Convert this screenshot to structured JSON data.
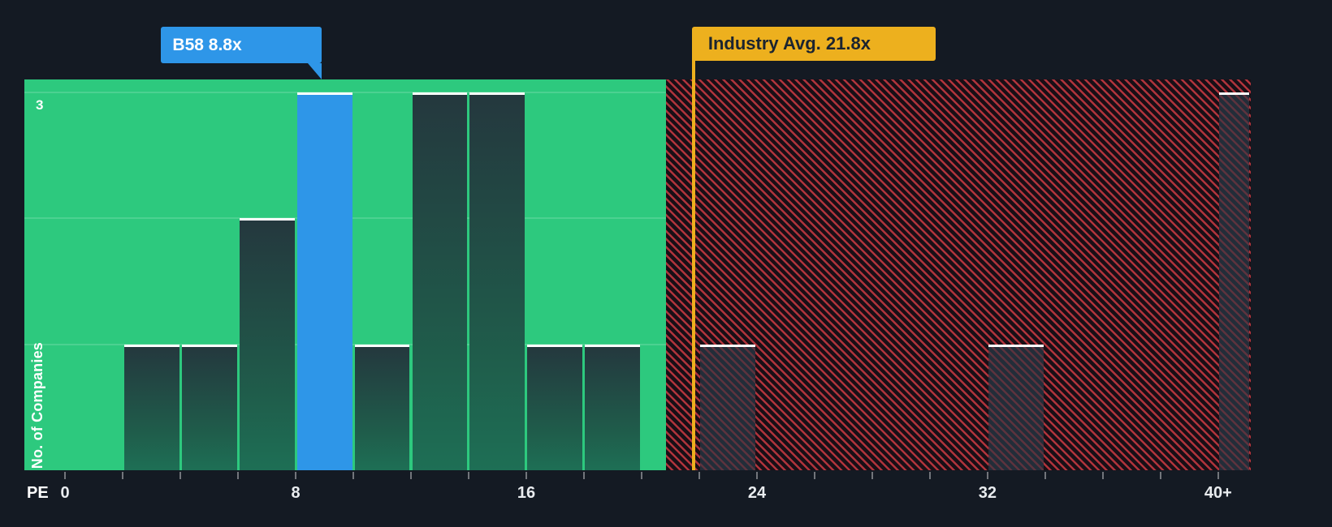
{
  "chart_data": {
    "type": "bar",
    "xlabel": "PE",
    "ylabel": "No. of Companies",
    "xlim": [
      -1.41,
      41.13
    ],
    "ylim": [
      0,
      3.1
    ],
    "y_tick": {
      "value": 3,
      "label": "3"
    },
    "y_gridlines": [
      1,
      2,
      3
    ],
    "x_tick_labels": [
      "0",
      "8",
      "16",
      "24",
      "32",
      "40+"
    ],
    "x_tick_values": [
      0,
      8,
      16,
      24,
      32,
      40
    ],
    "minor_tick_step": 2,
    "green_zone_end": 20.85,
    "bins": [
      {
        "x0": 2,
        "x1": 4,
        "count": 1,
        "zone": "green"
      },
      {
        "x0": 4,
        "x1": 6,
        "count": 1,
        "zone": "green"
      },
      {
        "x0": 6,
        "x1": 8,
        "count": 2,
        "zone": "green"
      },
      {
        "x0": 8,
        "x1": 10,
        "count": 3,
        "zone": "highlight"
      },
      {
        "x0": 10,
        "x1": 12,
        "count": 1,
        "zone": "green"
      },
      {
        "x0": 12,
        "x1": 14,
        "count": 3,
        "zone": "green"
      },
      {
        "x0": 14,
        "x1": 16,
        "count": 3,
        "zone": "green"
      },
      {
        "x0": 16,
        "x1": 18,
        "count": 1,
        "zone": "green"
      },
      {
        "x0": 18,
        "x1": 20,
        "count": 1,
        "zone": "green"
      },
      {
        "x0": 22,
        "x1": 24,
        "count": 1,
        "zone": "red"
      },
      {
        "x0": 32,
        "x1": 34,
        "count": 1,
        "zone": "red"
      },
      {
        "x0": 40,
        "x1": 41.13,
        "count": 3,
        "zone": "red"
      }
    ],
    "company_marker": {
      "label": "B58 8.8x",
      "value": 8.8
    },
    "industry_marker": {
      "label": "Industry Avg. 21.8x",
      "value": 21.8
    },
    "colors": {
      "bg": "#141a23",
      "green": "#2dc97e",
      "blue": "#2e96e8",
      "yellow": "#edb01e",
      "red": "#e0434b",
      "bardark": "#232d39",
      "text": "#e9ecef",
      "darktext": "#1b2430"
    }
  }
}
